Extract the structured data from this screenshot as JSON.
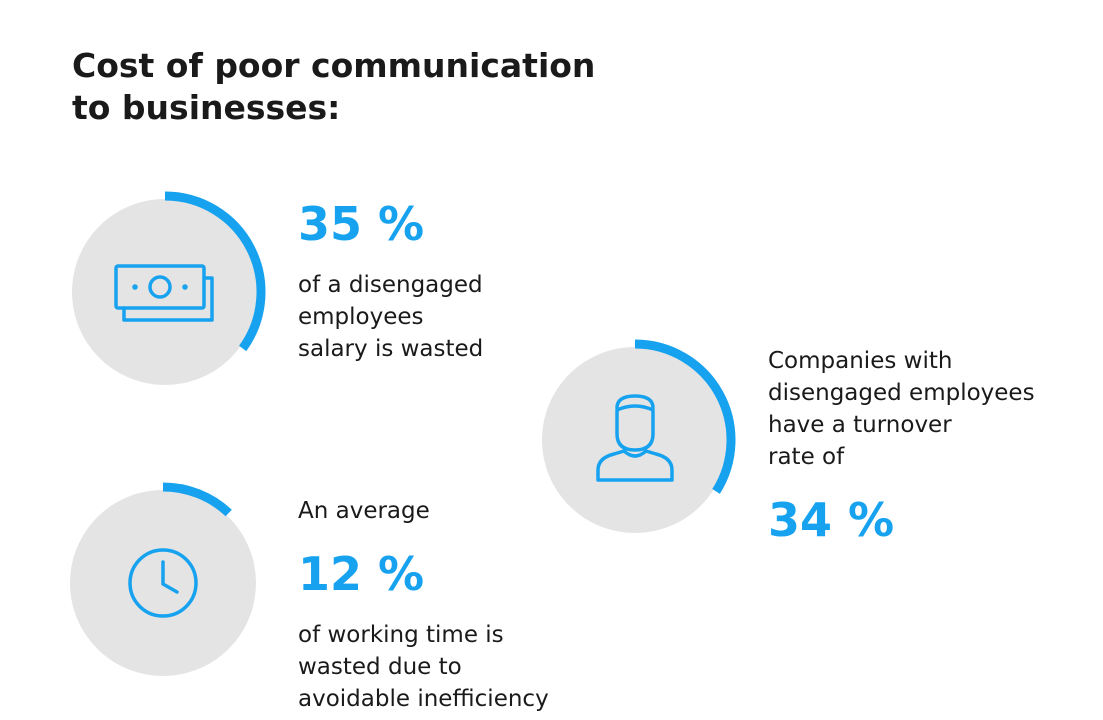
{
  "header": {
    "title_lines": [
      "Cost of poor communication",
      "to businesses:"
    ]
  },
  "stats": [
    {
      "value": 35,
      "value_label": "35 %",
      "before_lines": [],
      "after_lines": [
        "of a disengaged",
        "employees",
        "salary is wasted"
      ],
      "color": "#17a2ef"
    },
    {
      "value": 34,
      "value_label": "34 %",
      "before_lines": [
        "Companies with",
        "disengaged employees",
        "have a turnover",
        "rate of"
      ],
      "after_lines": [],
      "color": "#17a2ef"
    },
    {
      "value": 12,
      "value_label": "12 %",
      "before_lines": [
        "An average"
      ],
      "after_lines": [
        "of working time is",
        "wasted due to",
        "avoidable inefficiency"
      ],
      "color": "#17a2ef"
    }
  ]
}
